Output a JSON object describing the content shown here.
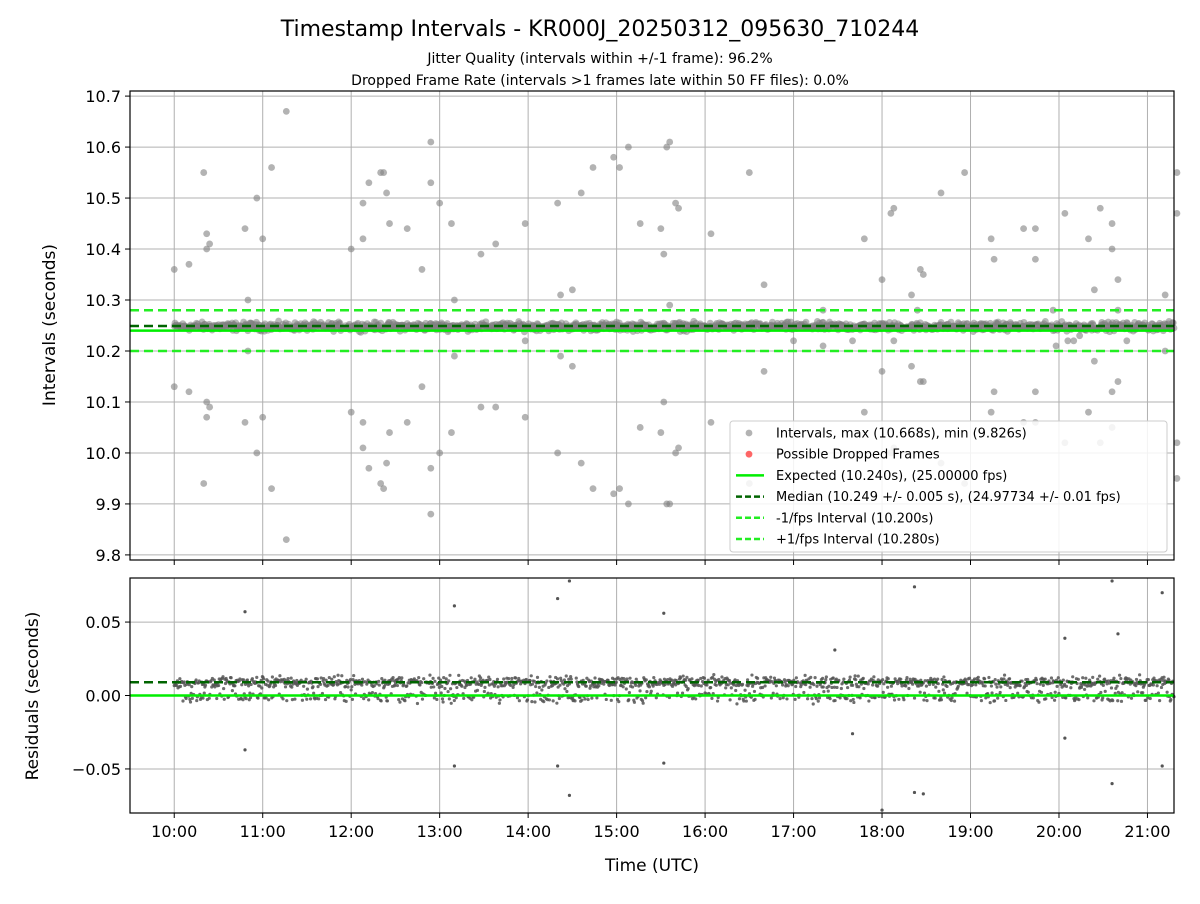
{
  "figure": {
    "title": "Timestamp Intervals - KR000J_20250312_095630_710244",
    "subtitle_1": "Jitter Quality (intervals within +/-1 frame): 96.2%",
    "subtitle_2": "Dropped Frame Rate (intervals >1 frames late within 50 FF files): 0.0%"
  },
  "colors": {
    "points": "#808080",
    "dropped": "#ff0000",
    "expected": "#00ee00",
    "median": "#006400",
    "interval": "#22ee22",
    "grid": "#b0b0b0"
  },
  "chart_data": [
    {
      "type": "scatter",
      "ylabel": "Intervals (seconds)",
      "xlim": [
        "09:30",
        "21:18"
      ],
      "ylim": [
        9.79,
        10.71
      ],
      "yticks": [
        "9.8",
        "9.9",
        "10.0",
        "10.1",
        "10.2",
        "10.3",
        "10.4",
        "10.5",
        "10.6",
        "10.7"
      ],
      "grid": true,
      "legend_position": "lower right",
      "reference_lines": [
        {
          "name": "Expected (10.240s), (25.00000 fps)",
          "y": 10.24,
          "style": "solid",
          "color": "#00ee00"
        },
        {
          "name": "Median (10.249 +/- 0.005 s), (24.97734 +/- 0.01 fps)",
          "y": 10.249,
          "style": "dashed",
          "color": "#006400"
        },
        {
          "name": "-1/fps Interval (10.200s)",
          "y": 10.2,
          "style": "dashed",
          "color": "#22ee22"
        },
        {
          "name": "+1/fps Interval (10.280s)",
          "y": 10.28,
          "style": "dashed",
          "color": "#22ee22"
        }
      ],
      "series": [
        {
          "name": "Intervals, max (10.668s), min (9.826s)",
          "band": {
            "center": 10.248,
            "spread": 0.012
          },
          "outliers": [
            [
              "10:00",
              10.36
            ],
            [
              "10:00",
              10.13
            ],
            [
              "10:10",
              10.37
            ],
            [
              "10:10",
              10.12
            ],
            [
              "10:20",
              10.55
            ],
            [
              "10:20",
              9.94
            ],
            [
              "10:22",
              10.43
            ],
            [
              "10:22",
              10.4
            ],
            [
              "10:22",
              10.1
            ],
            [
              "10:22",
              10.07
            ],
            [
              "10:24",
              10.41
            ],
            [
              "10:24",
              10.09
            ],
            [
              "10:48",
              10.44
            ],
            [
              "10:48",
              10.06
            ],
            [
              "10:50",
              10.3
            ],
            [
              "10:50",
              10.2
            ],
            [
              "10:56",
              10.5
            ],
            [
              "10:56",
              10.0
            ],
            [
              "11:00",
              10.42
            ],
            [
              "11:00",
              10.07
            ],
            [
              "11:06",
              10.56
            ],
            [
              "11:06",
              9.93
            ],
            [
              "11:16",
              10.67
            ],
            [
              "11:16",
              9.83
            ],
            [
              "12:00",
              10.4
            ],
            [
              "12:00",
              10.08
            ],
            [
              "12:08",
              10.49
            ],
            [
              "12:08",
              10.42
            ],
            [
              "12:08",
              10.06
            ],
            [
              "12:08",
              10.01
            ],
            [
              "12:12",
              10.53
            ],
            [
              "12:12",
              9.97
            ],
            [
              "12:20",
              10.55
            ],
            [
              "12:20",
              9.94
            ],
            [
              "12:22",
              10.55
            ],
            [
              "12:22",
              9.93
            ],
            [
              "12:24",
              10.51
            ],
            [
              "12:24",
              9.98
            ],
            [
              "12:26",
              10.45
            ],
            [
              "12:26",
              10.04
            ],
            [
              "12:38",
              10.44
            ],
            [
              "12:38",
              10.06
            ],
            [
              "12:48",
              10.36
            ],
            [
              "12:48",
              10.13
            ],
            [
              "12:54",
              10.61
            ],
            [
              "12:54",
              10.53
            ],
            [
              "12:54",
              9.97
            ],
            [
              "12:54",
              9.88
            ],
            [
              "13:00",
              10.49
            ],
            [
              "13:00",
              10.0
            ],
            [
              "13:08",
              10.45
            ],
            [
              "13:08",
              10.04
            ],
            [
              "13:10",
              10.3
            ],
            [
              "13:10",
              10.19
            ],
            [
              "13:28",
              10.39
            ],
            [
              "13:28",
              10.09
            ],
            [
              "13:38",
              10.41
            ],
            [
              "13:38",
              10.09
            ],
            [
              "13:58",
              10.45
            ],
            [
              "13:58",
              10.07
            ],
            [
              "13:58",
              10.22
            ],
            [
              "14:20",
              10.49
            ],
            [
              "14:20",
              10.0
            ],
            [
              "14:22",
              10.31
            ],
            [
              "14:22",
              10.19
            ],
            [
              "14:30",
              10.32
            ],
            [
              "14:30",
              10.17
            ],
            [
              "14:36",
              10.51
            ],
            [
              "14:36",
              9.98
            ],
            [
              "14:44",
              10.56
            ],
            [
              "14:44",
              9.93
            ],
            [
              "14:58",
              10.58
            ],
            [
              "14:58",
              9.92
            ],
            [
              "15:02",
              10.56
            ],
            [
              "15:02",
              9.93
            ],
            [
              "15:08",
              10.6
            ],
            [
              "15:08",
              9.9
            ],
            [
              "15:16",
              10.45
            ],
            [
              "15:16",
              10.05
            ],
            [
              "15:30",
              10.44
            ],
            [
              "15:30",
              10.04
            ],
            [
              "15:32",
              10.39
            ],
            [
              "15:32",
              10.1
            ],
            [
              "15:34",
              10.6
            ],
            [
              "15:34",
              9.9
            ],
            [
              "15:36",
              10.61
            ],
            [
              "15:36",
              9.9
            ],
            [
              "15:36",
              10.29
            ],
            [
              "15:40",
              10.49
            ],
            [
              "15:40",
              10.0
            ],
            [
              "15:42",
              10.48
            ],
            [
              "15:42",
              10.01
            ],
            [
              "16:04",
              10.43
            ],
            [
              "16:04",
              10.06
            ],
            [
              "16:30",
              10.55
            ],
            [
              "16:30",
              9.94
            ],
            [
              "16:40",
              10.33
            ],
            [
              "16:40",
              10.16
            ],
            [
              "17:00",
              10.22
            ],
            [
              "17:20",
              10.28
            ],
            [
              "17:20",
              10.21
            ],
            [
              "17:40",
              10.22
            ],
            [
              "17:48",
              10.42
            ],
            [
              "17:48",
              10.08
            ],
            [
              "18:00",
              10.34
            ],
            [
              "18:00",
              10.16
            ],
            [
              "18:06",
              10.47
            ],
            [
              "18:06",
              10.0
            ],
            [
              "18:08",
              10.48
            ],
            [
              "18:08",
              10.01
            ],
            [
              "18:08",
              10.22
            ],
            [
              "18:20",
              10.31
            ],
            [
              "18:20",
              10.17
            ],
            [
              "18:24",
              10.28
            ],
            [
              "18:26",
              10.36
            ],
            [
              "18:26",
              10.14
            ],
            [
              "18:28",
              10.35
            ],
            [
              "18:28",
              10.14
            ],
            [
              "18:40",
              10.51
            ],
            [
              "18:40",
              9.98
            ],
            [
              "18:56",
              10.55
            ],
            [
              "18:56",
              9.94
            ],
            [
              "19:14",
              10.42
            ],
            [
              "19:14",
              10.08
            ],
            [
              "19:16",
              10.38
            ],
            [
              "19:16",
              10.12
            ],
            [
              "19:36",
              10.44
            ],
            [
              "19:36",
              10.06
            ],
            [
              "19:44",
              10.44
            ],
            [
              "19:44",
              10.06
            ],
            [
              "19:44",
              10.38
            ],
            [
              "19:44",
              10.12
            ],
            [
              "19:56",
              10.28
            ],
            [
              "19:58",
              10.21
            ],
            [
              "20:04",
              10.47
            ],
            [
              "20:04",
              10.02
            ],
            [
              "20:06",
              10.22
            ],
            [
              "20:10",
              10.22
            ],
            [
              "20:14",
              10.23
            ],
            [
              "20:20",
              10.42
            ],
            [
              "20:20",
              10.08
            ],
            [
              "20:24",
              10.32
            ],
            [
              "20:24",
              10.18
            ],
            [
              "20:28",
              10.48
            ],
            [
              "20:28",
              10.02
            ],
            [
              "20:36",
              10.45
            ],
            [
              "20:36",
              10.05
            ],
            [
              "20:36",
              10.4
            ],
            [
              "20:36",
              10.12
            ],
            [
              "20:40",
              10.34
            ],
            [
              "20:40",
              10.14
            ],
            [
              "20:40",
              10.28
            ],
            [
              "20:46",
              10.22
            ],
            [
              "21:12",
              10.31
            ],
            [
              "21:12",
              10.2
            ],
            [
              "21:20",
              10.55
            ],
            [
              "21:20",
              10.47
            ],
            [
              "21:20",
              10.02
            ],
            [
              "21:20",
              9.95
            ]
          ]
        },
        {
          "name": "Possible Dropped Frames",
          "points": []
        }
      ]
    },
    {
      "type": "scatter",
      "xlabel": "Time (UTC)",
      "ylabel": "Residuals (seconds)",
      "xlim": [
        "09:30",
        "21:18"
      ],
      "ylim": [
        -0.08,
        0.08
      ],
      "yticks": [
        "−0.05",
        "0.00",
        "0.05"
      ],
      "xticks": [
        "10:00",
        "11:00",
        "12:00",
        "13:00",
        "14:00",
        "15:00",
        "16:00",
        "17:00",
        "18:00",
        "19:00",
        "20:00",
        "21:00"
      ],
      "grid": true,
      "reference_lines": [
        {
          "y": 0.0,
          "style": "solid",
          "color": "#00ee00"
        },
        {
          "y": 0.009,
          "style": "dashed",
          "color": "#006400"
        }
      ],
      "band": {
        "center": 0.009,
        "spread": 0.006
      },
      "outliers": [
        [
          "10:48",
          0.057
        ],
        [
          "10:48",
          -0.037
        ],
        [
          "13:10",
          0.061
        ],
        [
          "13:10",
          -0.048
        ],
        [
          "14:20",
          0.066
        ],
        [
          "14:20",
          -0.048
        ],
        [
          "14:28",
          0.078
        ],
        [
          "14:28",
          -0.068
        ],
        [
          "15:32",
          0.056
        ],
        [
          "15:32",
          -0.046
        ],
        [
          "17:28",
          0.031
        ],
        [
          "17:40",
          -0.026
        ],
        [
          "18:00",
          -0.078
        ],
        [
          "18:22",
          0.074
        ],
        [
          "18:22",
          -0.066
        ],
        [
          "18:28",
          -0.067
        ],
        [
          "20:04",
          0.039
        ],
        [
          "20:04",
          -0.029
        ],
        [
          "20:36",
          -0.06
        ],
        [
          "20:36",
          0.078
        ],
        [
          "20:40",
          0.042
        ],
        [
          "21:10",
          0.07
        ],
        [
          "21:10",
          -0.048
        ]
      ]
    }
  ],
  "legend": {
    "items": [
      {
        "label": "Intervals, max (10.668s), min (9.826s)",
        "marker": "dot",
        "color": "#808080"
      },
      {
        "label": "Possible Dropped Frames",
        "marker": "dot",
        "color": "#ff0000"
      },
      {
        "label": "Expected (10.240s), (25.00000 fps)",
        "marker": "solid",
        "color": "#00ee00"
      },
      {
        "label": "Median (10.249 +/- 0.005 s), (24.97734 +/- 0.01 fps)",
        "marker": "dashed",
        "color": "#006400"
      },
      {
        "label": "-1/fps Interval (10.200s)",
        "marker": "dashed",
        "color": "#22ee22"
      },
      {
        "label": "+1/fps Interval (10.280s)",
        "marker": "dashed",
        "color": "#22ee22"
      }
    ]
  }
}
